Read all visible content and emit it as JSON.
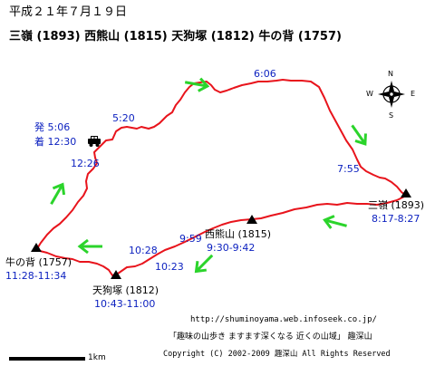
{
  "date": "平成２１年７月１９日",
  "route_summary": "三嶺 (1893) 西熊山 (1815) 天狗塚 (1812) 牛の背 (1757)",
  "colors": {
    "route": "#e8141c",
    "arrow": "#2bd42b",
    "time_text": "#0a1fbf",
    "label_text": "#000000"
  },
  "start": {
    "depart_label": "発 5:06",
    "arrive_label": "着 12:30",
    "parking_icon": "car-icon"
  },
  "waypoint_times": {
    "t_1226": "12:26",
    "t_520": "5:20",
    "t_606": "6:06",
    "t_755": "7:55",
    "t_959": "9:59",
    "t_1028": "10:28",
    "t_1023": "10:23"
  },
  "peaks": {
    "sanrei": {
      "name": "三嶺 (1893)",
      "time": "8:17-8:27"
    },
    "nishikuma": {
      "name": "西熊山 (1815)",
      "time": "9:30-9:42"
    },
    "tengu": {
      "name": "天狗塚 (1812)",
      "time": "10:43-11:00"
    },
    "ushinose": {
      "name": "牛の背 (1757)",
      "time": "11:28-11:34"
    }
  },
  "compass": {
    "n": "N",
    "s": "S",
    "e": "E",
    "w": "W"
  },
  "scale_label": "1km",
  "footer": {
    "url": "http://shuminoyama.web.infoseek.co.jp/",
    "tagline": "「趣味の山歩き ますます深くなる 近くの山域」 趣深山",
    "copyright": "Copyright (C) 2002-2009 趣深山 All Rights Reserved"
  }
}
